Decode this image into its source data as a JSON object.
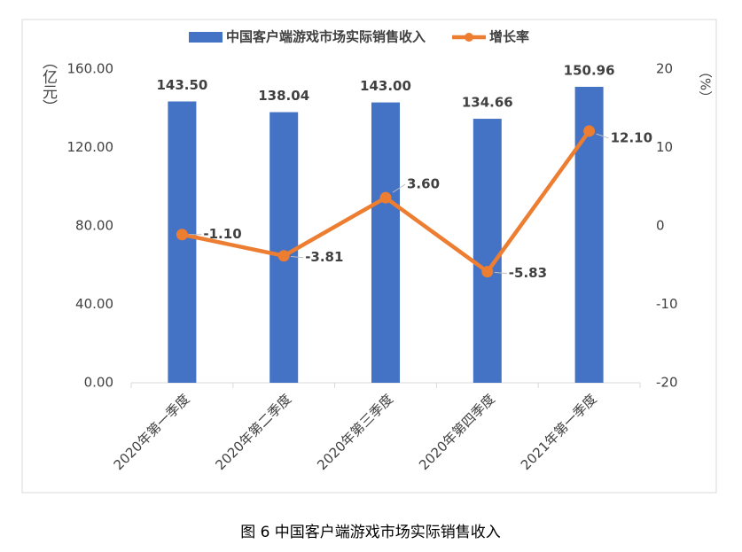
{
  "chart_data": {
    "type": "bar_line",
    "categories": [
      "2020年第一季度",
      "2020年第二季度",
      "2020年第三季度",
      "2020年第四季度",
      "2021年第一季度"
    ],
    "series": [
      {
        "name": "中国客户端游戏市场实际销售收入",
        "type": "bar",
        "color": "#4472c4",
        "values": [
          143.5,
          138.04,
          143.0,
          134.66,
          150.96
        ],
        "value_labels": [
          "143.50",
          "138.04",
          "143.00",
          "134.66",
          "150.96"
        ]
      },
      {
        "name": "增长率",
        "type": "line",
        "axis": "y2",
        "color": "#ed7d31",
        "values": [
          -1.1,
          -3.81,
          3.6,
          -5.83,
          12.1
        ],
        "value_labels": [
          "-1.10",
          "-3.81",
          "3.60",
          "-5.83",
          "12.10"
        ]
      }
    ],
    "y_label": "（亿元）",
    "y2_label": "（%）",
    "ylim": [
      0,
      160
    ],
    "yticks": [
      {
        "value": 0,
        "label": "0.00"
      },
      {
        "value": 40,
        "label": "40.00"
      },
      {
        "value": 80,
        "label": "80.00"
      },
      {
        "value": 120,
        "label": "120.00"
      },
      {
        "value": 160,
        "label": "160.00"
      }
    ],
    "y2lim": [
      -20,
      20
    ],
    "y2ticks": [
      -20,
      -10,
      0,
      10,
      20
    ],
    "grid": false,
    "legend": "top",
    "caption": "图 6  中国客户端游戏市场实际销售收入"
  }
}
